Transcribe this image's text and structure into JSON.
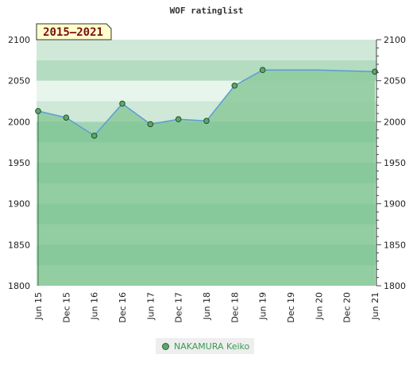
{
  "chart_data": {
    "type": "area",
    "title": "WOF ratinglist",
    "badge": "2015–2021",
    "categories": [
      "Jun 15",
      "Dec 15",
      "Jun 16",
      "Dec 16",
      "Jun 17",
      "Dec 17",
      "Jun 18",
      "Dec 18",
      "Jun 19",
      "Dec 19",
      "Jun 20",
      "Dec 20",
      "Jun 21"
    ],
    "series": [
      {
        "name": "NAKAMURA Keiko",
        "values": [
          2013,
          2005,
          1983,
          2022,
          1997,
          2003,
          2001,
          2044,
          2063,
          2063,
          2063,
          2062,
          2061
        ],
        "markers": [
          true,
          true,
          true,
          true,
          true,
          true,
          true,
          true,
          true,
          false,
          false,
          false,
          true
        ]
      }
    ],
    "ylim": [
      1800,
      2100
    ],
    "yticks": [
      1800,
      1850,
      1900,
      1950,
      2000,
      2050,
      2100
    ],
    "grid": true,
    "legend_position": "bottom-center",
    "colors": {
      "line": "#5b9bd5",
      "marker": "#5aa86a",
      "area_upper": "#8fcb9f",
      "area_lower": "#7cc493",
      "band_light": "#e8f5ec",
      "band_mid": "#cfe8d8",
      "band_top": "#b3dcc0",
      "badge_fill": "#ffffcc"
    }
  }
}
